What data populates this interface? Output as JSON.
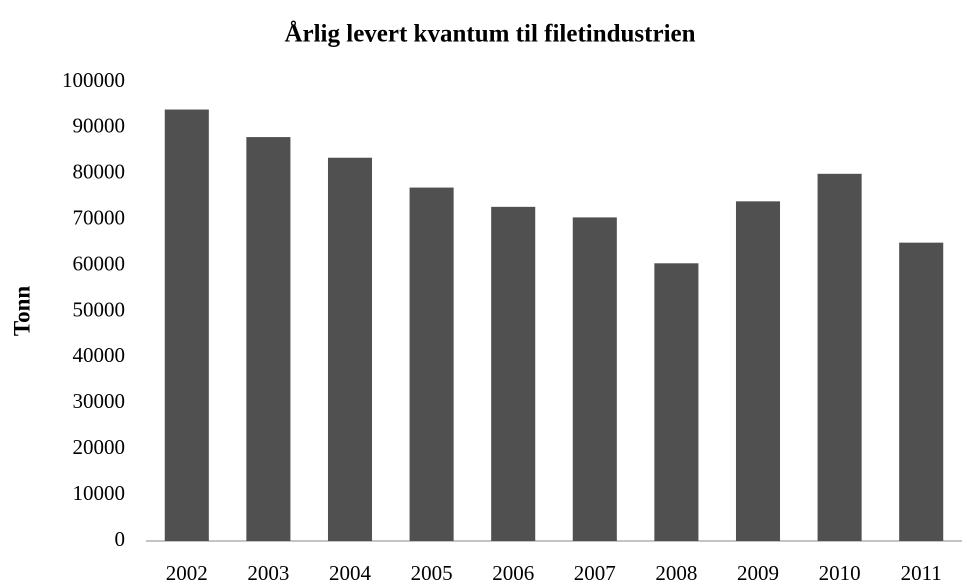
{
  "chart_data": {
    "type": "bar",
    "title": "Årlig levert kvantum til filetindustrien",
    "y_label": "Tonn",
    "categories": [
      "2002",
      "2003",
      "2004",
      "2005",
      "2006",
      "2007",
      "2008",
      "2009",
      "2010",
      "2011"
    ],
    "values": [
      94000,
      88000,
      83500,
      77000,
      72800,
      70500,
      60500,
      74000,
      80000,
      65000
    ],
    "color": "#505050",
    "ylim": [
      0,
      100000
    ],
    "yticks": [
      0,
      10000,
      20000,
      30000,
      40000,
      50000,
      60000,
      70000,
      80000,
      90000,
      100000
    ],
    "grid": false
  }
}
